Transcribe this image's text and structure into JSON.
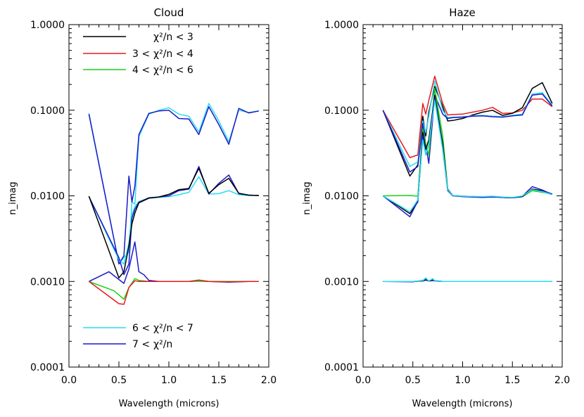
{
  "chart_data": [
    {
      "type": "line",
      "title": "Cloud",
      "xlabel": "Wavelength (microns)",
      "ylabel": "n_imag",
      "xlim": [
        0.0,
        2.0
      ],
      "ylim": [
        0.0001,
        1.0
      ],
      "y_scale": "log",
      "xticks": [
        "0.0",
        "0.5",
        "1.0",
        "1.5",
        "2.0"
      ],
      "yticks": [
        "1.0000",
        "0.1000",
        "0.0100",
        "0.0010",
        "0.0001"
      ],
      "legend": [
        {
          "label_pre": "",
          "label_post": "χ²/n < 3",
          "color": "#000000"
        },
        {
          "label_pre": "3 <",
          "label_post": "χ²/n < 4",
          "color": "#e8191e"
        },
        {
          "label_pre": "4 <",
          "label_post": "χ²/n < 6",
          "color": "#19d119"
        },
        {
          "label_pre": "6 <",
          "label_post": "χ²/n < 7",
          "color": "#2bdcf2"
        },
        {
          "label_pre": "7 <",
          "label_post": "χ²/n",
          "color": "#1a1ac8"
        }
      ],
      "series": [
        {
          "color": "#2bdcf2",
          "x": [
            0.2,
            0.5,
            0.55,
            0.6,
            0.63,
            0.66,
            0.7,
            0.8,
            0.9,
            1.0,
            1.1,
            1.2,
            1.3,
            1.4,
            1.5,
            1.6,
            1.7,
            1.8,
            1.9
          ],
          "y": [
            0.092,
            0.0016,
            0.0019,
            0.0022,
            0.0085,
            0.008,
            0.049,
            0.09,
            0.1,
            0.107,
            0.09,
            0.085,
            0.056,
            0.12,
            0.075,
            0.043,
            0.1,
            0.094,
            0.098
          ]
        },
        {
          "color": "#1a1ac8",
          "x": [
            0.2,
            0.5,
            0.55,
            0.6,
            0.63,
            0.66,
            0.7,
            0.8,
            0.9,
            1.0,
            1.1,
            1.2,
            1.3,
            1.4,
            1.5,
            1.6,
            1.7,
            1.8,
            1.9
          ],
          "y": [
            0.09,
            0.0016,
            0.002,
            0.017,
            0.0085,
            0.013,
            0.052,
            0.092,
            0.098,
            0.1,
            0.08,
            0.079,
            0.052,
            0.11,
            0.068,
            0.04,
            0.105,
            0.093,
            0.098
          ]
        },
        {
          "color": "#2bdcf2",
          "x": [
            0.2,
            0.5,
            0.55,
            0.6,
            0.63,
            0.66,
            0.7,
            0.8,
            0.9,
            1.0,
            1.1,
            1.2,
            1.3,
            1.4,
            1.5,
            1.6,
            1.7,
            1.8,
            1.9
          ],
          "y": [
            0.0098,
            0.0018,
            0.0016,
            0.0028,
            0.006,
            0.0075,
            0.0086,
            0.0094,
            0.0096,
            0.0098,
            0.0103,
            0.011,
            0.0167,
            0.0105,
            0.0106,
            0.0115,
            0.0103,
            0.0101,
            0.0101
          ]
        },
        {
          "color": "#1a1ac8",
          "x": [
            0.2,
            0.5,
            0.55,
            0.6,
            0.63,
            0.66,
            0.7,
            0.8,
            0.9,
            1.0,
            1.1,
            1.2,
            1.3,
            1.4,
            1.5,
            1.6,
            1.7,
            1.8,
            1.9
          ],
          "y": [
            0.0098,
            0.0019,
            0.0012,
            0.0016,
            0.0055,
            0.007,
            0.0084,
            0.0095,
            0.0097,
            0.01,
            0.0115,
            0.012,
            0.022,
            0.0105,
            0.014,
            0.0175,
            0.0106,
            0.0102,
            0.0101
          ]
        },
        {
          "color": "#000000",
          "x": [
            0.2,
            0.5,
            0.55,
            0.6,
            0.63,
            0.66,
            0.7,
            0.8,
            0.9,
            1.0,
            1.1,
            1.2,
            1.3,
            1.4,
            1.5,
            1.6,
            1.7,
            1.8,
            1.9
          ],
          "y": [
            0.0099,
            0.0011,
            0.0013,
            0.0026,
            0.0047,
            0.0063,
            0.0083,
            0.0094,
            0.0097,
            0.0104,
            0.0118,
            0.0122,
            0.021,
            0.0107,
            0.0135,
            0.016,
            0.0107,
            0.0102,
            0.0101
          ]
        },
        {
          "color": "#1a1ac8",
          "x": [
            0.2,
            0.4,
            0.55,
            0.6,
            0.66,
            0.7,
            0.75,
            0.8,
            0.9,
            1.0,
            1.2,
            1.3,
            1.4,
            1.6,
            1.8,
            1.9
          ],
          "y": [
            0.001,
            0.0013,
            0.00095,
            0.0014,
            0.0029,
            0.0013,
            0.0012,
            0.00103,
            0.001,
            0.001,
            0.001,
            0.00101,
            0.001,
            0.00098,
            0.001,
            0.001
          ]
        },
        {
          "color": "#19d119",
          "x": [
            0.2,
            0.45,
            0.55,
            0.6,
            0.66,
            0.7,
            0.8,
            1.0,
            1.2,
            1.3,
            1.4,
            1.6,
            1.8,
            1.9
          ],
          "y": [
            0.001,
            0.00078,
            0.00062,
            0.00085,
            0.00108,
            0.00103,
            0.001,
            0.001,
            0.001,
            0.00101,
            0.001,
            0.001,
            0.001,
            0.001
          ]
        },
        {
          "color": "#e8191e",
          "x": [
            0.2,
            0.5,
            0.55,
            0.6,
            0.66,
            0.7,
            0.8,
            1.0,
            1.2,
            1.3,
            1.4,
            1.6,
            1.8,
            1.9
          ],
          "y": [
            0.001,
            0.00055,
            0.00054,
            0.00085,
            0.00102,
            0.001,
            0.001,
            0.001,
            0.001,
            0.00104,
            0.001,
            0.00099,
            0.001,
            0.001
          ]
        }
      ]
    },
    {
      "type": "line",
      "title": "Haze",
      "xlabel": "Wavelength (microns)",
      "ylabel": "n_imag",
      "xlim": [
        0.0,
        2.0
      ],
      "ylim": [
        0.0001,
        1.0
      ],
      "y_scale": "log",
      "xticks": [
        "0.0",
        "0.5",
        "1.0",
        "1.5",
        "2.0"
      ],
      "yticks": [
        "1.0000",
        "0.1000",
        "0.0100",
        "0.0010",
        "0.0001"
      ],
      "series": [
        {
          "color": "#e8191e",
          "x": [
            0.2,
            0.47,
            0.55,
            0.6,
            0.63,
            0.66,
            0.72,
            0.8,
            0.85,
            0.9,
            1.0,
            1.1,
            1.2,
            1.3,
            1.4,
            1.5,
            1.6,
            1.7,
            1.8,
            1.9
          ],
          "y": [
            0.1,
            0.028,
            0.03,
            0.12,
            0.09,
            0.13,
            0.25,
            0.12,
            0.088,
            0.089,
            0.09,
            0.095,
            0.1,
            0.108,
            0.092,
            0.093,
            0.1,
            0.135,
            0.135,
            0.11
          ]
        },
        {
          "color": "#000000",
          "x": [
            0.2,
            0.47,
            0.55,
            0.6,
            0.63,
            0.66,
            0.72,
            0.8,
            0.85,
            0.9,
            1.0,
            1.1,
            1.2,
            1.3,
            1.4,
            1.5,
            1.6,
            1.7,
            1.8,
            1.9
          ],
          "y": [
            0.1,
            0.017,
            0.023,
            0.085,
            0.05,
            0.095,
            0.19,
            0.11,
            0.075,
            0.076,
            0.08,
            0.088,
            0.095,
            0.1,
            0.087,
            0.092,
            0.107,
            0.18,
            0.21,
            0.12
          ]
        },
        {
          "color": "#2bdcf2",
          "x": [
            0.2,
            0.47,
            0.55,
            0.6,
            0.63,
            0.66,
            0.72,
            0.8,
            0.85,
            0.9,
            1.0,
            1.1,
            1.2,
            1.3,
            1.4,
            1.5,
            1.6,
            1.7,
            1.8,
            1.9
          ],
          "y": [
            0.1,
            0.022,
            0.025,
            0.075,
            0.055,
            0.085,
            0.22,
            0.1,
            0.082,
            0.083,
            0.084,
            0.086,
            0.087,
            0.085,
            0.084,
            0.087,
            0.09,
            0.155,
            0.16,
            0.115
          ]
        },
        {
          "color": "#1a1ac8",
          "x": [
            0.2,
            0.47,
            0.55,
            0.6,
            0.63,
            0.66,
            0.72,
            0.8,
            0.85,
            0.9,
            1.0,
            1.1,
            1.2,
            1.3,
            1.4,
            1.5,
            1.6,
            1.7,
            1.8,
            1.9
          ],
          "y": [
            0.1,
            0.019,
            0.022,
            0.07,
            0.04,
            0.024,
            0.15,
            0.09,
            0.08,
            0.082,
            0.083,
            0.085,
            0.086,
            0.084,
            0.083,
            0.086,
            0.088,
            0.15,
            0.155,
            0.112
          ]
        },
        {
          "color": "#19d119",
          "x": [
            0.2,
            0.47,
            0.55,
            0.6,
            0.63,
            0.66,
            0.72,
            0.8,
            0.85,
            0.9,
            1.0,
            1.2,
            1.3,
            1.4,
            1.5,
            1.6,
            1.7,
            1.8,
            1.9
          ],
          "y": [
            0.01,
            0.0101,
            0.0099,
            0.06,
            0.04,
            0.03,
            0.18,
            0.05,
            0.012,
            0.0101,
            0.0099,
            0.0097,
            0.0098,
            0.0096,
            0.0095,
            0.0098,
            0.0115,
            0.011,
            0.0105
          ]
        },
        {
          "color": "#000000",
          "x": [
            0.2,
            0.47,
            0.55,
            0.6,
            0.63,
            0.66,
            0.72,
            0.8,
            0.85,
            0.9,
            1.0,
            1.2,
            1.3,
            1.4,
            1.5,
            1.6,
            1.7,
            1.8,
            1.9
          ],
          "y": [
            0.01,
            0.0062,
            0.0085,
            0.055,
            0.035,
            0.045,
            0.15,
            0.04,
            0.012,
            0.0101,
            0.0099,
            0.0097,
            0.0098,
            0.0096,
            0.0095,
            0.0098,
            0.012,
            0.0115,
            0.0105
          ]
        },
        {
          "color": "#1a1ac8",
          "x": [
            0.2,
            0.47,
            0.55,
            0.6,
            0.63,
            0.66,
            0.72,
            0.8,
            0.85,
            0.9,
            1.0,
            1.2,
            1.3,
            1.4,
            1.5,
            1.6,
            1.7,
            1.8,
            1.9
          ],
          "y": [
            0.01,
            0.0057,
            0.0087,
            0.05,
            0.03,
            0.04,
            0.14,
            0.035,
            0.0115,
            0.01,
            0.0098,
            0.0096,
            0.0097,
            0.0096,
            0.0095,
            0.0099,
            0.0128,
            0.0117,
            0.0104
          ]
        },
        {
          "color": "#2bdcf2",
          "x": [
            0.2,
            0.47,
            0.55,
            0.6,
            0.63,
            0.66,
            0.72,
            0.8,
            0.85,
            0.9,
            1.0,
            1.2,
            1.3,
            1.4,
            1.5,
            1.6,
            1.7,
            1.8,
            1.9
          ],
          "y": [
            0.01,
            0.0065,
            0.009,
            0.045,
            0.03,
            0.04,
            0.13,
            0.035,
            0.0118,
            0.0101,
            0.0099,
            0.0098,
            0.0099,
            0.0097,
            0.0096,
            0.01,
            0.0118,
            0.0112,
            0.0103
          ]
        },
        {
          "color": "#000000",
          "x": [
            0.2,
            0.5,
            0.6,
            0.63,
            0.66,
            0.7,
            0.72,
            0.8,
            1.0,
            1.5,
            1.9
          ],
          "y": [
            0.001,
            0.001,
            0.00101,
            0.00104,
            0.00101,
            0.00103,
            0.00101,
            0.001,
            0.001,
            0.001,
            0.001
          ]
        },
        {
          "color": "#1a1ac8",
          "x": [
            0.2,
            0.5,
            0.6,
            0.63,
            0.66,
            0.7,
            0.72,
            0.8,
            1.0,
            1.5,
            1.9
          ],
          "y": [
            0.001,
            0.00099,
            0.00103,
            0.00106,
            0.00102,
            0.00105,
            0.00102,
            0.001,
            0.001,
            0.001,
            0.001
          ]
        },
        {
          "color": "#2bdcf2",
          "x": [
            0.2,
            0.5,
            0.6,
            0.63,
            0.66,
            0.7,
            0.72,
            0.8,
            1.0,
            1.5,
            1.9
          ],
          "y": [
            0.001,
            0.001,
            0.00102,
            0.0011,
            0.00101,
            0.00108,
            0.00101,
            0.001,
            0.001,
            0.001,
            0.001
          ]
        }
      ]
    }
  ]
}
